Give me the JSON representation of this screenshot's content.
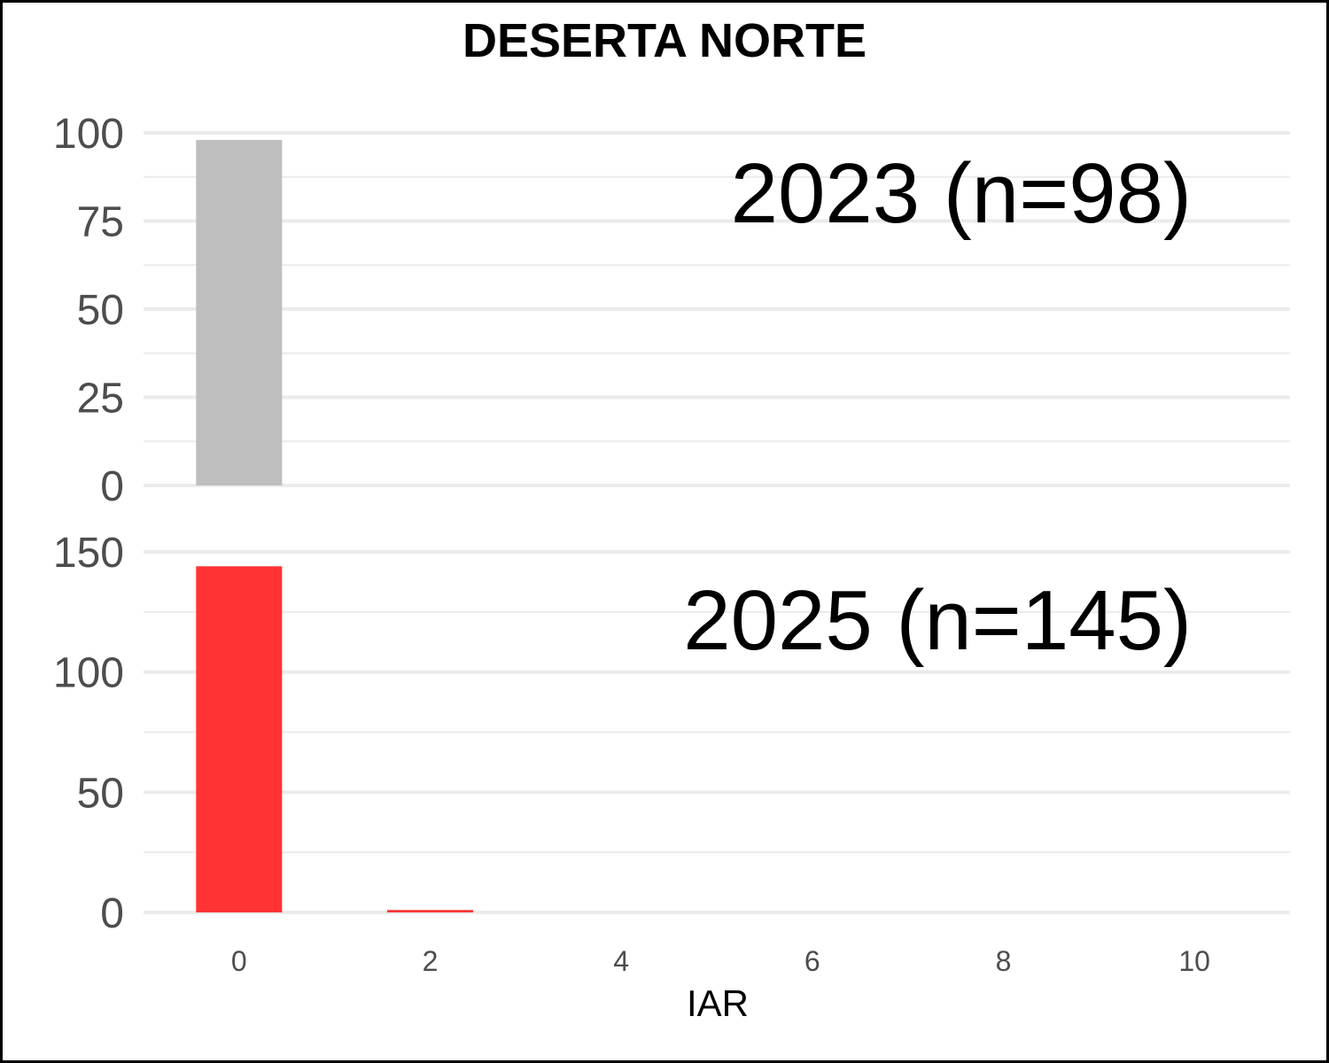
{
  "chart_data": {
    "type": "bar",
    "title": "DESERTA NORTE",
    "xlabel": "IAR",
    "ylabel": "",
    "xlim": [
      -1,
      11
    ],
    "x_ticks": [
      0,
      2,
      4,
      6,
      8,
      10
    ],
    "grid": true,
    "legend": "none",
    "panels": [
      {
        "label": "2023 (n=98)",
        "color": "#bebebe",
        "ylim": [
          0,
          100
        ],
        "y_ticks": [
          0,
          25,
          50,
          75,
          100
        ],
        "points": [
          {
            "x": 0,
            "y": 98
          }
        ]
      },
      {
        "label": "2025 (n=145)",
        "color": "#ff3333",
        "ylim": [
          0,
          150
        ],
        "y_ticks": [
          0,
          50,
          100,
          150
        ],
        "points": [
          {
            "x": 0,
            "y": 144
          },
          {
            "x": 2,
            "y": 1
          }
        ]
      }
    ]
  }
}
